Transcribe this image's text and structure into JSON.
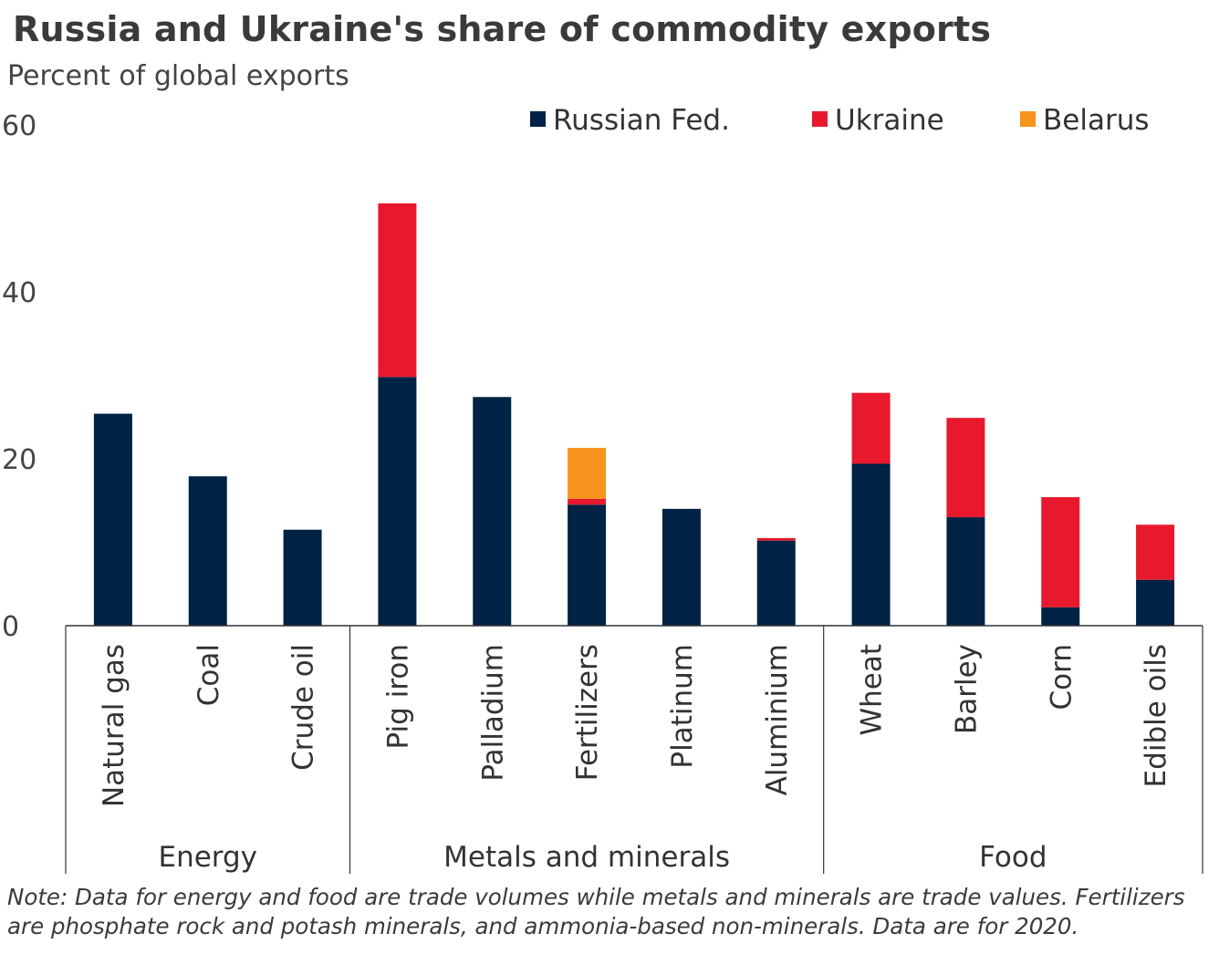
{
  "title": "Russia and Ukraine's share of commodity exports",
  "subtitle": "Percent of global exports",
  "note": "Note: Data for energy and food are trade volumes while metals and minerals are trade values. Fertilizers are phosphate rock and potash minerals, and ammonia-based non-minerals. Data are for 2020.",
  "colors": {
    "russia": "#002245",
    "ukraine": "#e8192c",
    "belarus": "#f7941d",
    "axis": "#333333"
  },
  "chart_data": {
    "type": "bar",
    "stacked": true,
    "title": "Russia and Ukraine's share of commodity exports",
    "ylabel": "Percent of global exports",
    "xlabel": "",
    "ylim": [
      0,
      60
    ],
    "yticks": [
      0,
      20,
      40,
      60
    ],
    "grid": false,
    "legend_position": "top-right",
    "categories": [
      "Natural gas",
      "Coal",
      "Crude oil",
      "Pig iron",
      "Palladium",
      "Fertilizers",
      "Platinum",
      "Aluminium",
      "Wheat",
      "Barley",
      "Corn",
      "Edible oils"
    ],
    "groups": [
      {
        "name": "Energy",
        "count": 3
      },
      {
        "name": "Metals and minerals",
        "count": 5
      },
      {
        "name": "Food",
        "count": 4
      }
    ],
    "series": [
      {
        "name": "Russian Fed.",
        "color": "#002245",
        "values": [
          25.4,
          17.9,
          11.5,
          29.8,
          27.4,
          14.5,
          14.0,
          10.2,
          19.4,
          13.0,
          2.2,
          5.5
        ]
      },
      {
        "name": "Ukraine",
        "color": "#e8192c",
        "values": [
          0,
          0,
          0,
          20.8,
          0,
          0.7,
          0,
          0.3,
          8.5,
          11.9,
          13.2,
          6.6
        ]
      },
      {
        "name": "Belarus",
        "color": "#f7941d",
        "values": [
          0,
          0,
          0,
          0,
          0,
          6.1,
          0,
          0,
          0,
          0,
          0,
          0
        ]
      }
    ]
  }
}
